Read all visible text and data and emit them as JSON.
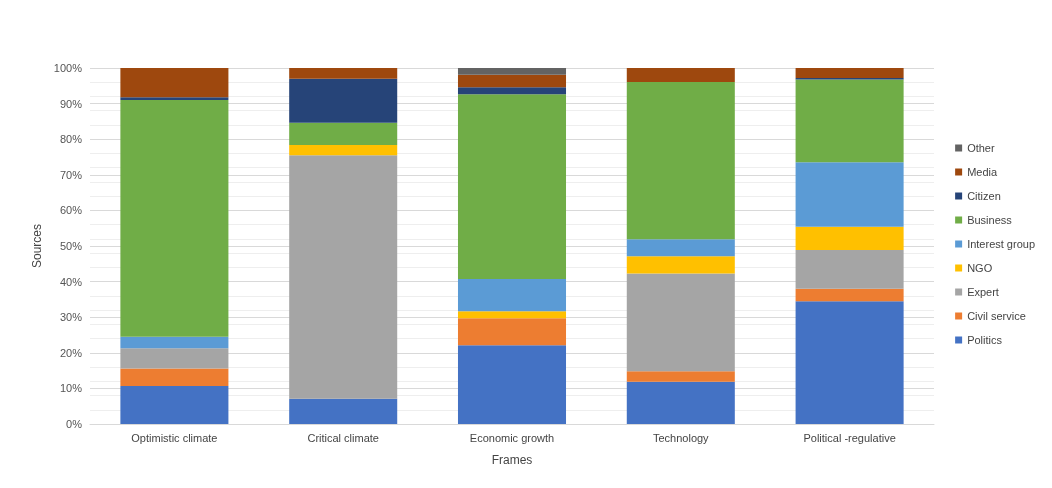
{
  "chart_data": {
    "type": "bar",
    "stacked": true,
    "xlabel": "Frames",
    "ylabel": "Sources",
    "categories": [
      "Optimistic climate",
      "Critical climate",
      "Economic growth",
      "Technology",
      "Political -regulative"
    ],
    "ylim": [
      0,
      100
    ],
    "yticks": [
      {
        "value": 0,
        "label": "0%"
      },
      {
        "value": 10,
        "label": "10%"
      },
      {
        "value": 20,
        "label": "20%"
      },
      {
        "value": 30,
        "label": "30%"
      },
      {
        "value": 40,
        "label": "40%"
      },
      {
        "value": 50,
        "label": "50%"
      },
      {
        "value": 60,
        "label": "60%"
      },
      {
        "value": 70,
        "label": "70%"
      },
      {
        "value": 80,
        "label": "80%"
      },
      {
        "value": 90,
        "label": "90%"
      },
      {
        "value": 100,
        "label": "100%"
      }
    ],
    "grid": "y",
    "legend": "right",
    "series": [
      {
        "name": "Politics",
        "color": "#4472c4",
        "values": [
          10.7,
          7.1,
          22.1,
          11.9,
          34.5
        ]
      },
      {
        "name": "Civil service",
        "color": "#ed7d31",
        "values": [
          4.9,
          0,
          7.6,
          2.9,
          3.5
        ]
      },
      {
        "name": "Expert",
        "color": "#a5a5a5",
        "values": [
          5.7,
          68.4,
          0,
          27.5,
          10.9
        ]
      },
      {
        "name": "NGO",
        "color": "#ffc000",
        "values": [
          0,
          2.9,
          2.0,
          4.8,
          6.5
        ]
      },
      {
        "name": "Interest group",
        "color": "#5b9bd5",
        "values": [
          3.2,
          0,
          9.0,
          4.8,
          18.1
        ]
      },
      {
        "name": "Business",
        "color": "#70ad47",
        "values": [
          66.5,
          6.2,
          51.9,
          44.2,
          23.3
        ]
      },
      {
        "name": "Citizen",
        "color": "#264478",
        "values": [
          0.8,
          12.4,
          2.0,
          0,
          0.4
        ]
      },
      {
        "name": "Media",
        "color": "#9e480e",
        "values": [
          8.2,
          3.0,
          3.5,
          3.9,
          2.8
        ]
      },
      {
        "name": "Other",
        "color": "#636363",
        "values": [
          0,
          0,
          1.9,
          0,
          0
        ]
      }
    ]
  }
}
